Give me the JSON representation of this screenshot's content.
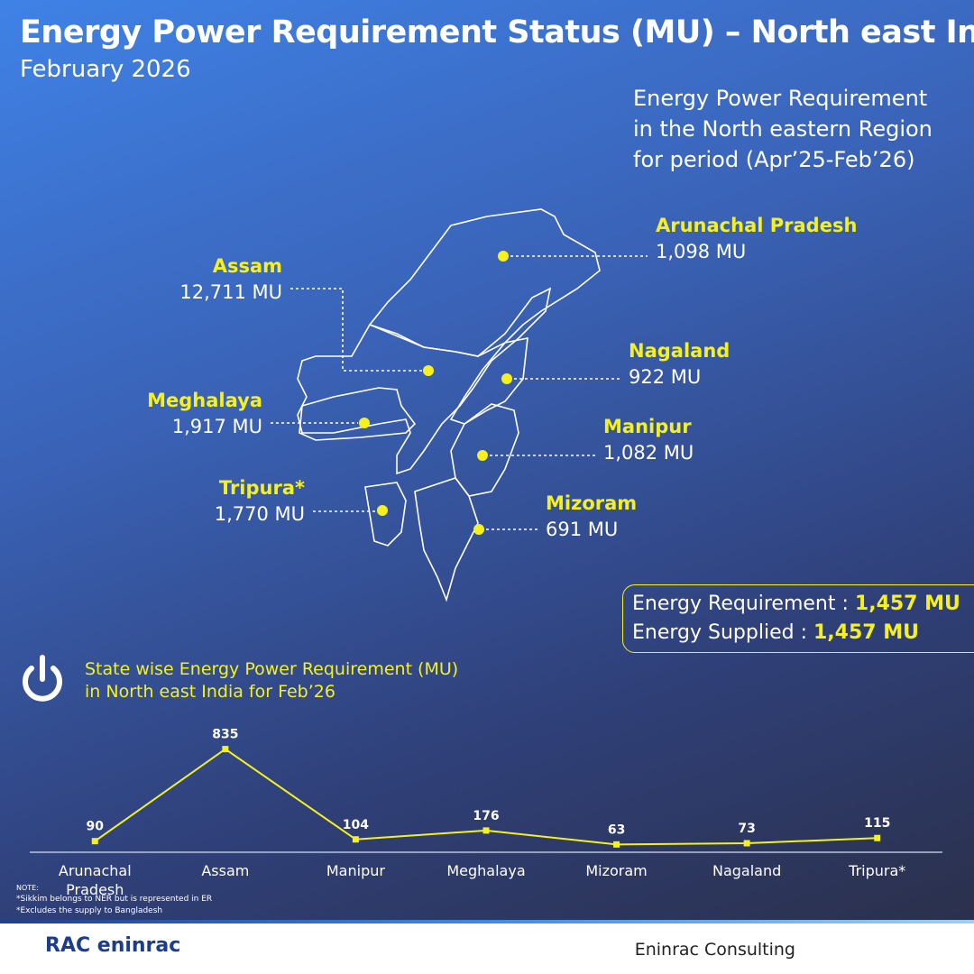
{
  "header": {
    "title": "Energy Power Requirement Status (MU) – North east India",
    "subtitle": "February 2026"
  },
  "map": {
    "caption": [
      "Energy Power Requirement",
      "in the North eastern Region",
      "for period (Apr’25-Feb’26)"
    ],
    "states": [
      {
        "name": "Arunachal Pradesh",
        "value": "1,098 MU"
      },
      {
        "name": "Assam",
        "value": "12,711 MU"
      },
      {
        "name": "Nagaland",
        "value": "922 MU"
      },
      {
        "name": "Meghalaya",
        "value": "1,917 MU"
      },
      {
        "name": "Manipur",
        "value": "1,082 MU"
      },
      {
        "name": "Tripura*",
        "value": "1,770 MU"
      },
      {
        "name": "Mizoram",
        "value": "691 MU"
      }
    ]
  },
  "summary": {
    "requirement_label": "Energy Requirement :",
    "requirement": "1,457 MU",
    "supplied_label": "Energy Supplied :",
    "supplied": "1,457 MU"
  },
  "chart_data": {
    "type": "line",
    "title": [
      "State wise Energy Power Requirement (MU)",
      "in North east India for Feb’26"
    ],
    "categories": [
      "Arunachal Pradesh",
      "Assam",
      "Manipur",
      "Meghalaya",
      "Mizoram",
      "Nagaland",
      "Tripura*"
    ],
    "values": [
      90,
      835,
      104,
      176,
      63,
      73,
      115
    ],
    "color": "#f5f01e"
  },
  "notes": {
    "label": "NOTE:",
    "lines": [
      "*Sikkim belongs to NER but is represented in ER",
      "*Excludes the supply to Bangladesh"
    ]
  },
  "footer": {
    "logo": "RAC eninrac",
    "company": "Eninrac Consulting"
  }
}
